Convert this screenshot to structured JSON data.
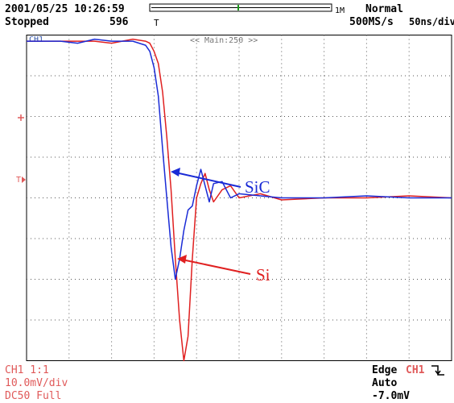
{
  "header": {
    "datetime": "2001/05/25 10:26:59",
    "status": "Stopped",
    "count": "596",
    "record_length": "1M",
    "trigger_marker": "T",
    "acq_mode": "Normal",
    "sample_rate": "500MS/s",
    "timebase": "50ns/div"
  },
  "screen": {
    "zoom_label": "<< Main:250 >>",
    "ch1_marker": "CH1",
    "trigger_level_marker": "T"
  },
  "annotations": {
    "sic_label": "SiC",
    "si_label": "Si",
    "sic_color": "#1a2bd6",
    "si_color": "#e02020"
  },
  "footer": {
    "ch1_setting": "CH1 1:1",
    "volts_div": "10.0mV/div",
    "coupling": "DC50 Full",
    "trigger_type": "Edge",
    "trigger_source": "CH1",
    "trigger_slope_icon": "falling-edge-icon",
    "trigger_mode": "Auto",
    "trigger_level": "-7.0mV"
  },
  "chart_data": {
    "type": "line",
    "title": "",
    "xlabel": "",
    "ylabel": "",
    "x_unit": "ns",
    "y_unit": "div",
    "xlim": [
      0,
      500
    ],
    "ylim": [
      -4,
      4
    ],
    "grid": true,
    "series": [
      {
        "name": "SiC",
        "color": "#1a2bd6",
        "x": [
          0,
          40,
          60,
          80,
          100,
          125,
          140,
          145,
          150,
          155,
          160,
          165,
          170,
          175,
          180,
          185,
          190,
          195,
          200,
          205,
          210,
          215,
          220,
          230,
          240,
          250,
          275,
          300,
          350,
          400,
          450,
          500
        ],
        "y": [
          3.85,
          3.85,
          3.8,
          3.9,
          3.85,
          3.85,
          3.75,
          3.6,
          3.2,
          2.5,
          1.2,
          0.0,
          -1.2,
          -2.0,
          -1.5,
          -0.8,
          -0.3,
          -0.2,
          0.3,
          0.7,
          0.3,
          -0.1,
          0.35,
          0.4,
          0.0,
          0.1,
          0.05,
          0.0,
          0.0,
          0.05,
          0.0,
          0.0
        ]
      },
      {
        "name": "Si",
        "color": "#e02020",
        "x": [
          0,
          40,
          60,
          80,
          100,
          125,
          140,
          145,
          150,
          155,
          160,
          165,
          170,
          175,
          180,
          185,
          190,
          195,
          200,
          205,
          210,
          215,
          220,
          230,
          240,
          250,
          275,
          300,
          350,
          400,
          450,
          500
        ],
        "y": [
          3.85,
          3.85,
          3.85,
          3.85,
          3.8,
          3.9,
          3.85,
          3.8,
          3.6,
          3.3,
          2.6,
          1.5,
          0.2,
          -1.5,
          -3.0,
          -4.0,
          -3.4,
          -1.5,
          0.0,
          0.35,
          0.6,
          0.2,
          -0.1,
          0.2,
          0.3,
          0.0,
          0.1,
          -0.05,
          0.0,
          0.0,
          0.05,
          0.0
        ]
      }
    ]
  }
}
